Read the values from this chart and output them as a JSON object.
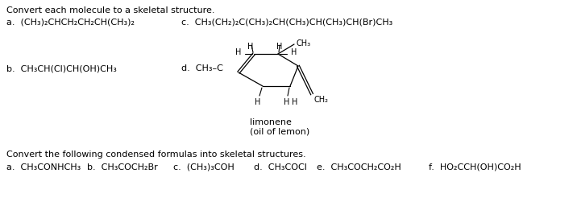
{
  "background_color": "#ffffff",
  "title_line1": "Convert each molecule to a skeletal structure.",
  "label_a": "a.  (CH₃)₂CHCH₂CH₂CH(CH₃)₂",
  "label_c": "c.  CH₃(CH₂)₂C(CH₃)₂CH(CH₃)CH(CH₃)CH(Br)CH₃",
  "label_b": "b.  CH₃CH(Cl)CH(OH)CH₃",
  "limonene_label": "limonene",
  "limonene_sublabel": "(oil of lemon)",
  "bottom_title": "Convert the following condensed formulas into skeletal structures.",
  "bottom_a": "a.  CH₃CONHCH₃",
  "bottom_b": "b.  CH₃COCH₂Br",
  "bottom_c": "c.  (CH₃)₃COH",
  "bottom_d": "d.  CH₃COCl",
  "bottom_e": "e.  CH₃COCH₂CO₂H",
  "bottom_f": "f.  HO₂CCH(OH)CO₂H",
  "font_size_main": 8.0,
  "font_size_small": 7.0,
  "text_color": "#000000"
}
